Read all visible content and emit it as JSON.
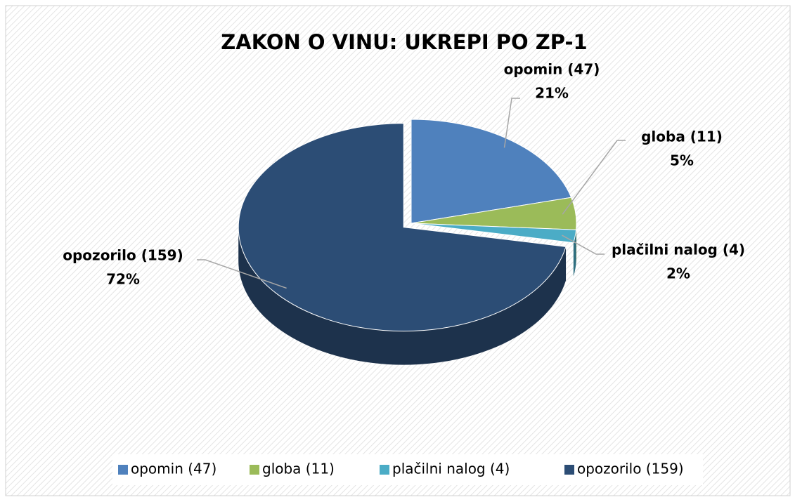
{
  "chart_data": {
    "type": "pie",
    "title": "ZAKON O VINU: UKREPI PO ZP-1",
    "categories": [
      "opomin (47)",
      "globa (11)",
      "plačilni nalog (4)",
      "opozorilo (159)"
    ],
    "values": [
      21,
      5,
      2,
      72
    ],
    "value_labels": [
      "21%",
      "5%",
      "2%",
      "72%"
    ],
    "colors": [
      "#4f81bd",
      "#9bbb59",
      "#4bacc6",
      "#2c4d75"
    ],
    "legend": "bottom"
  }
}
